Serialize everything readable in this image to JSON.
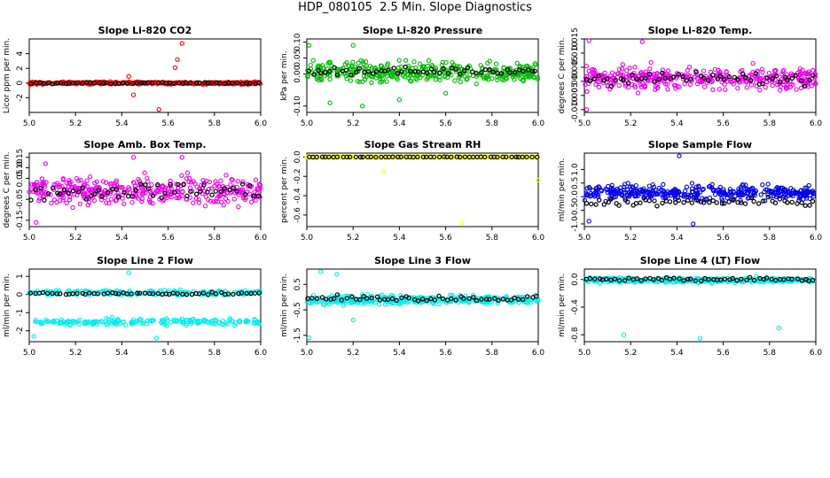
{
  "page_title": "HDP_080105  2.5 Min. Slope Diagnostics",
  "chart_data": [
    {
      "type": "scatter",
      "title": "Slope Li-820 CO2",
      "ylabel": "Licor ppm per min.",
      "xlim": [
        5.0,
        6.0
      ],
      "ylim": [
        -4,
        6
      ],
      "xticks": [
        "5.0",
        "5.2",
        "5.4",
        "5.6",
        "5.8",
        "6.0"
      ],
      "yticks": [
        "-2",
        "0",
        "2",
        "4"
      ],
      "ytick_values": [
        -2,
        0,
        2,
        4
      ],
      "series_color": "#ff0000",
      "series_spread": 0.28,
      "series_center": 0.0,
      "black_spread": 0.18,
      "black_center": 0.0,
      "outliers": [
        [
          5.66,
          5.4
        ],
        [
          5.64,
          3.2
        ],
        [
          5.63,
          2.1
        ],
        [
          5.45,
          -1.6
        ],
        [
          5.56,
          -3.6
        ],
        [
          5.43,
          0.9
        ]
      ]
    },
    {
      "type": "scatter",
      "title": "Slope Li-820 Pressure",
      "ylabel": "kPa per min.",
      "xlim": [
        5.0,
        6.0
      ],
      "ylim": [
        -0.12,
        0.11
      ],
      "xticks": [
        "5.0",
        "5.2",
        "5.4",
        "5.6",
        "5.8",
        "6.0"
      ],
      "yticks": [
        "-0.10",
        "0.00",
        "0.05",
        "0.10"
      ],
      "ytick_values": [
        -0.1,
        0.0,
        0.05,
        0.1
      ],
      "series_color": "#00bb00",
      "series_spread": 0.055,
      "series_center": 0.005,
      "black_spread": 0.02,
      "black_center": 0.01,
      "outliers": [
        [
          5.01,
          0.09
        ],
        [
          5.2,
          0.09
        ],
        [
          5.24,
          -0.1
        ],
        [
          5.1,
          -0.09
        ],
        [
          5.4,
          -0.08
        ],
        [
          5.6,
          -0.06
        ]
      ]
    },
    {
      "type": "scatter",
      "title": "Slope Li-820 Temp.",
      "ylabel": "degrees C per min.",
      "xlim": [
        5.0,
        6.0
      ],
      "ylim": [
        -0.011,
        0.015
      ],
      "xticks": [
        "5.0",
        "5.2",
        "5.4",
        "5.6",
        "5.8",
        "6.0"
      ],
      "yticks": [
        "-0.010",
        "-0.005",
        "0.000",
        "0.005",
        "0.010",
        "0.015"
      ],
      "ytick_values": [
        -0.01,
        -0.005,
        0.0,
        0.005,
        0.01,
        0.015
      ],
      "series_color": "#ee00ee",
      "series_spread": 0.007,
      "series_center": 0.001,
      "black_spread": 0.004,
      "black_center": 0.001,
      "outliers": [
        [
          5.01,
          -0.01
        ],
        [
          5.02,
          0.015
        ],
        [
          5.25,
          0.014
        ]
      ]
    },
    {
      "type": "scatter",
      "title": "Slope Amb. Box Temp.",
      "ylabel": "degrees C per min.",
      "xlim": [
        5.0,
        6.0
      ],
      "ylim": [
        -0.18,
        0.17
      ],
      "xticks": [
        "5.0",
        "5.2",
        "5.4",
        "5.6",
        "5.8",
        "6.0"
      ],
      "yticks": [
        "-0.15",
        "-0.05",
        "0.05",
        "0.10",
        "0.15"
      ],
      "ytick_values": [
        -0.15,
        -0.05,
        0.05,
        0.1,
        0.15
      ],
      "series_color": "#ee00ee",
      "series_spread": 0.11,
      "series_center": -0.01,
      "black_spread": 0.07,
      "black_center": -0.01,
      "outliers": [
        [
          5.03,
          -0.16
        ],
        [
          5.07,
          0.12
        ],
        [
          5.45,
          0.15
        ],
        [
          5.66,
          0.15
        ]
      ]
    },
    {
      "type": "scatter",
      "title": "Slope Gas Stream RH",
      "ylabel": "percent per min.",
      "xlim": [
        5.0,
        6.0
      ],
      "ylim": [
        -0.72,
        0.04
      ],
      "xticks": [
        "5.0",
        "5.2",
        "5.4",
        "5.6",
        "5.8",
        "6.0"
      ],
      "yticks": [
        "-0.6",
        "-0.4",
        "-0.2",
        "0.0"
      ],
      "ytick_values": [
        -0.6,
        -0.4,
        -0.2,
        0.0
      ],
      "series_color": "#ffff00",
      "series_spread": 0.004,
      "series_center": 0.0,
      "black_spread": 0.003,
      "black_center": 0.0,
      "outliers": [
        [
          5.33,
          -0.15
        ],
        [
          5.67,
          -0.68
        ],
        [
          6.0,
          -0.24
        ]
      ]
    },
    {
      "type": "scatter",
      "title": "Slope Sample Flow",
      "ylabel": "ml/min per min.",
      "xlim": [
        5.0,
        6.0
      ],
      "ylim": [
        -1.1,
        1.6
      ],
      "xticks": [
        "5.0",
        "5.2",
        "5.4",
        "5.6",
        "5.8",
        "6.0"
      ],
      "yticks": [
        "-1.0",
        "-0.5",
        "0.0",
        "0.5",
        "1.0"
      ],
      "ytick_values": [
        -1.0,
        -0.5,
        0.0,
        0.5,
        1.0
      ],
      "series_color": "#0000ee",
      "series_spread": 0.5,
      "series_center": 0.15,
      "black_spread": 0.25,
      "black_center": -0.2,
      "outliers": [
        [
          5.41,
          1.5
        ],
        [
          5.47,
          -1.0
        ],
        [
          5.02,
          -0.9
        ]
      ]
    },
    {
      "type": "scatter",
      "title": "Slope Line 2 Flow",
      "ylabel": "ml/min per min.",
      "xlim": [
        5.0,
        6.0
      ],
      "ylim": [
        -2.6,
        1.4
      ],
      "xticks": [
        "5.0",
        "5.2",
        "5.4",
        "5.6",
        "5.8",
        "6.0"
      ],
      "yticks": [
        "-2",
        "-1",
        "0",
        "1"
      ],
      "ytick_values": [
        -2,
        -1,
        0,
        1
      ],
      "series_color": "#00eeee",
      "series_spread": 0.25,
      "series_center": 0.1,
      "black_spread": 0.12,
      "black_center": 0.05,
      "second_band_center": -1.5,
      "second_band_spread": 0.3,
      "outliers": [
        [
          5.43,
          1.2
        ],
        [
          5.55,
          -2.4
        ],
        [
          5.02,
          -2.3
        ]
      ]
    },
    {
      "type": "scatter",
      "title": "Slope Line 3 Flow",
      "ylabel": "ml/min per min.",
      "xlim": [
        5.0,
        6.0
      ],
      "ylim": [
        -1.75,
        1.1
      ],
      "xticks": [
        "5.0",
        "5.2",
        "5.4",
        "5.6",
        "5.8",
        "6.0"
      ],
      "yticks": [
        "-1.5",
        "-0.5",
        "0.5"
      ],
      "ytick_values": [
        -1.5,
        -0.5,
        0.5
      ],
      "series_color": "#00eeee",
      "series_spread": 0.3,
      "series_center": -0.1,
      "black_spread": 0.18,
      "black_center": -0.05,
      "outliers": [
        [
          5.01,
          -1.6
        ],
        [
          5.13,
          0.9
        ],
        [
          5.06,
          1.0
        ],
        [
          5.2,
          -0.9
        ]
      ]
    },
    {
      "type": "scatter",
      "title": "Slope Line 4 (LT) Flow",
      "ylabel": "ml/min per min.",
      "xlim": [
        5.0,
        6.0
      ],
      "ylim": [
        -0.9,
        0.15
      ],
      "xticks": [
        "5.0",
        "5.2",
        "5.4",
        "5.6",
        "5.8",
        "6.0"
      ],
      "yticks": [
        "-0.8",
        "-0.4",
        "0.0"
      ],
      "ytick_values": [
        -0.8,
        -0.4,
        0.0
      ],
      "series_color": "#00eeee",
      "series_spread": 0.06,
      "series_center": -0.01,
      "black_spread": 0.05,
      "black_center": 0.0,
      "outliers": [
        [
          5.17,
          -0.8
        ],
        [
          5.5,
          -0.85
        ],
        [
          5.84,
          -0.7
        ]
      ]
    }
  ]
}
